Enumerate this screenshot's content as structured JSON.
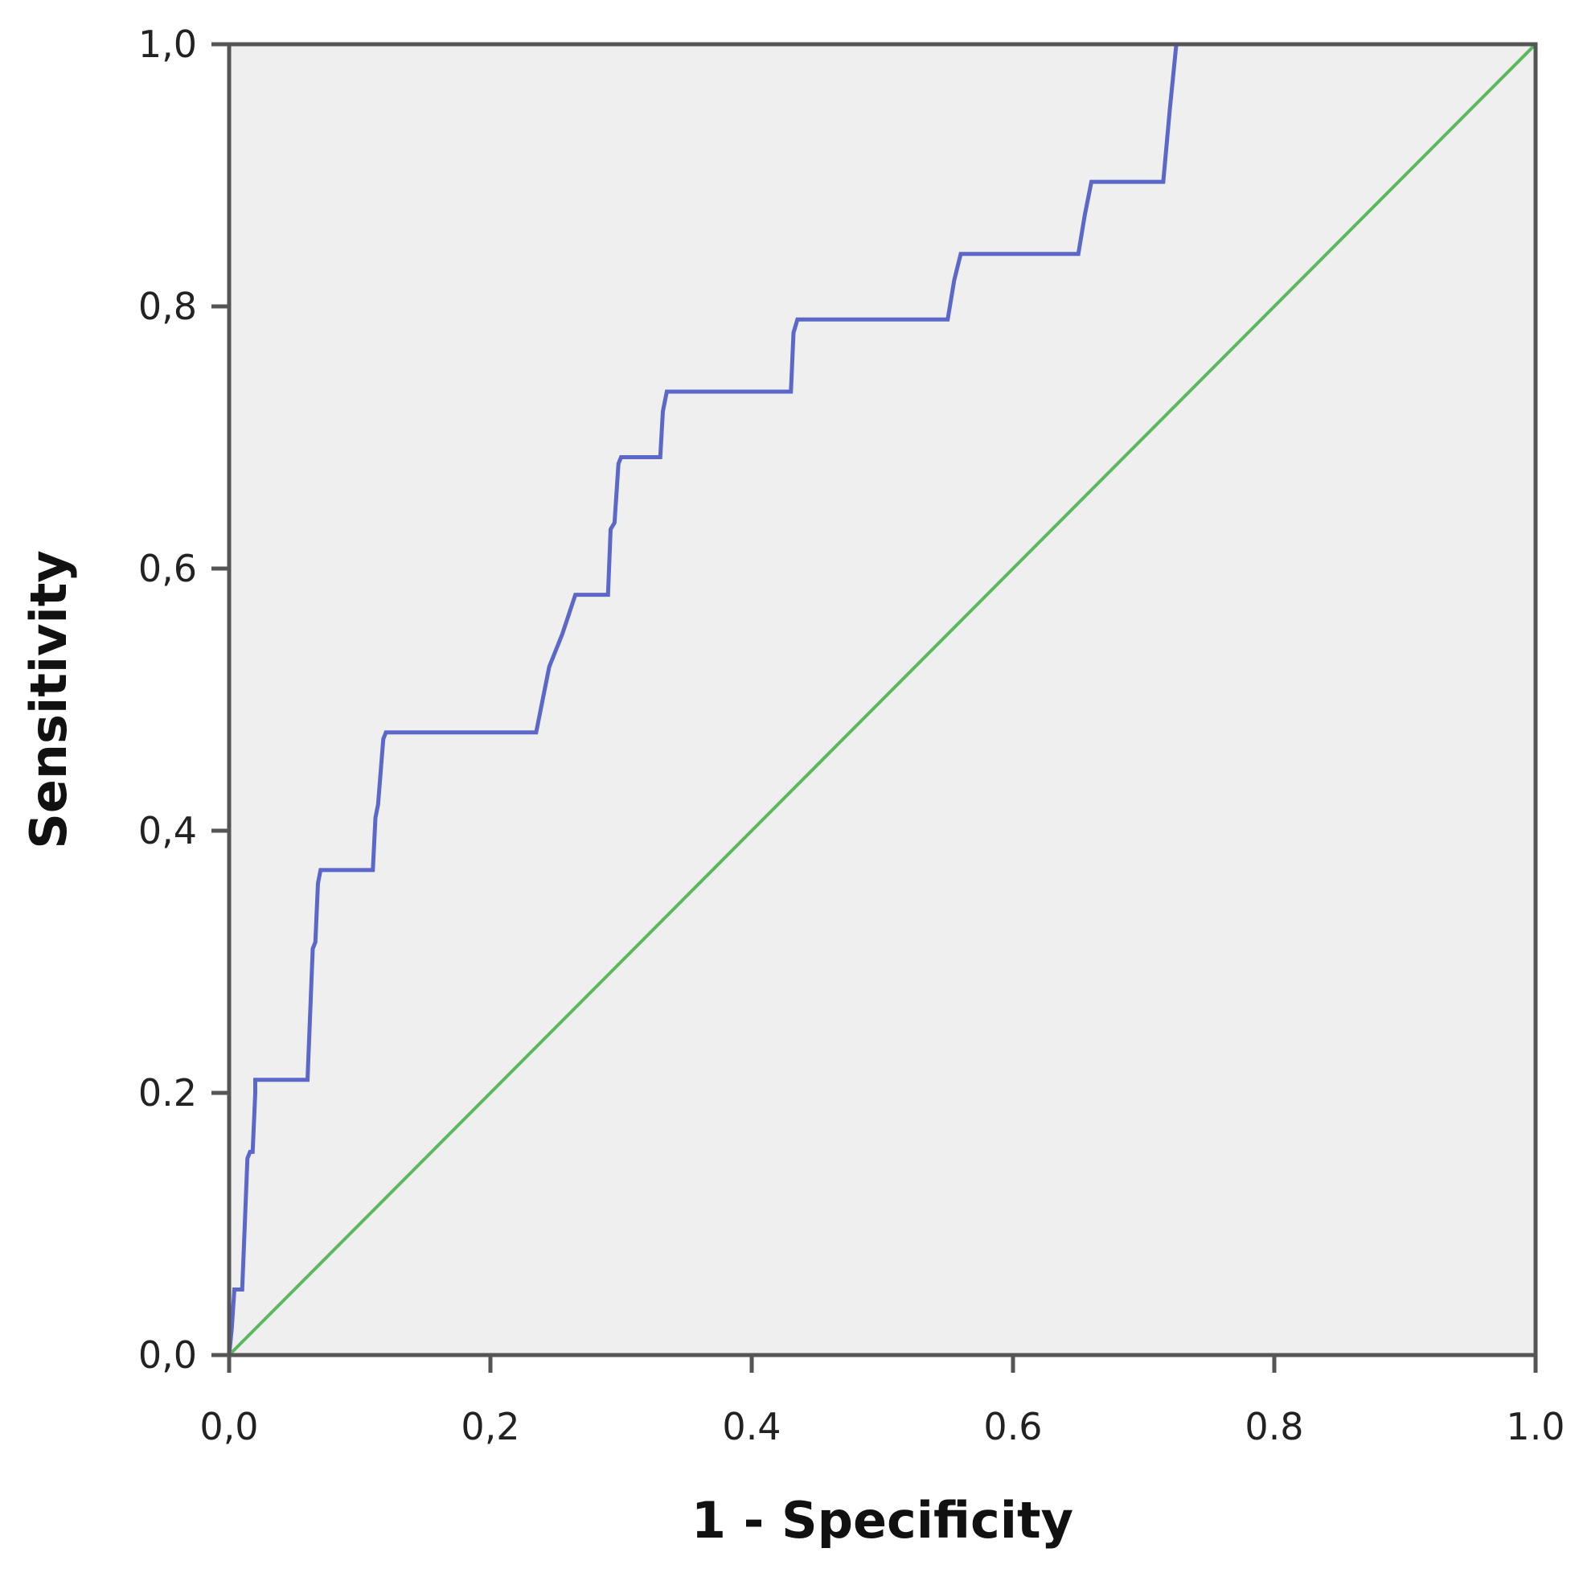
{
  "chart_data": {
    "type": "line",
    "title": "",
    "xlabel": "1 - Specificity",
    "ylabel": "Sensitivity",
    "xlim": [
      0,
      1
    ],
    "ylim": [
      0,
      1
    ],
    "x_ticks": [
      0,
      0.2,
      0.4,
      0.6,
      0.8,
      1.0
    ],
    "y_ticks": [
      0,
      0.2,
      0.4,
      0.6,
      0.8,
      1.0
    ],
    "x_tick_labels": [
      "0,0",
      "0,2",
      "0.4",
      "0.6",
      "0.8",
      "1.0"
    ],
    "y_tick_labels": [
      "0,0",
      "0.2",
      "0,4",
      "0,6",
      "0,8",
      "1,0"
    ],
    "grid": false,
    "legend": "none",
    "background_color": "#efefef",
    "series": [
      {
        "color": "#5b67c9",
        "x": [
          0,
          0.002,
          0.004,
          0.01,
          0.012,
          0.014,
          0.016,
          0.018,
          0.02,
          0.02,
          0.06,
          0.062,
          0.064,
          0.066,
          0.068,
          0.07,
          0.07,
          0.11,
          0.112,
          0.114,
          0.118,
          0.12,
          0.235,
          0.24,
          0.245,
          0.255,
          0.265,
          0.29,
          0.292,
          0.295,
          0.298,
          0.3,
          0.33,
          0.332,
          0.335,
          0.43,
          0.432,
          0.435,
          0.55,
          0.555,
          0.56,
          0.65,
          0.655,
          0.66,
          0.715,
          0.72,
          0.725,
          1.0
        ],
        "y": [
          0,
          0.02,
          0.05,
          0.05,
          0.1,
          0.15,
          0.155,
          0.155,
          0.2,
          0.21,
          0.21,
          0.26,
          0.31,
          0.315,
          0.36,
          0.37,
          0.37,
          0.37,
          0.41,
          0.42,
          0.47,
          0.475,
          0.475,
          0.5,
          0.525,
          0.55,
          0.58,
          0.58,
          0.63,
          0.635,
          0.68,
          0.685,
          0.685,
          0.72,
          0.735,
          0.735,
          0.78,
          0.79,
          0.79,
          0.82,
          0.84,
          0.84,
          0.87,
          0.895,
          0.895,
          0.95,
          1.0,
          1.0
        ]
      },
      {
        "color": "#5cb85c",
        "x": [
          0,
          1
        ],
        "y": [
          0,
          1
        ]
      }
    ]
  }
}
